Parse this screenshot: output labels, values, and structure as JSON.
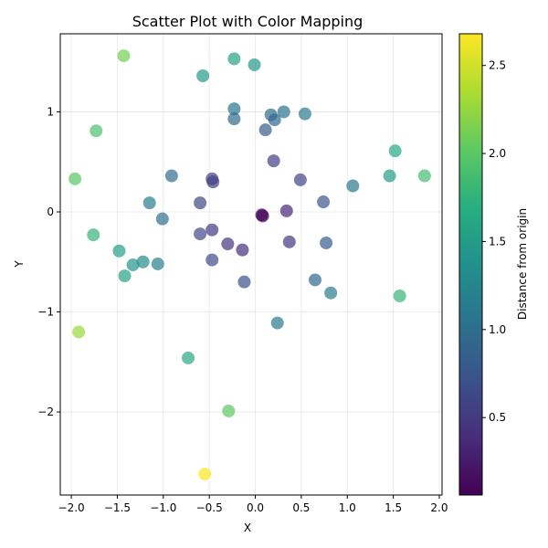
{
  "chart_data": {
    "type": "scatter",
    "title": "Scatter Plot with Color Mapping",
    "xlabel": "X",
    "ylabel": "Y",
    "xlim": [
      -2.12,
      2.03
    ],
    "ylim": [
      -2.83,
      1.78
    ],
    "xticks": [
      -2.0,
      -1.5,
      -1.0,
      -0.5,
      0.0,
      0.5,
      1.0,
      1.5,
      2.0
    ],
    "xtick_labels": [
      "−2.0",
      "−1.5",
      "−1.0",
      "−0.5",
      "0.0",
      "0.5",
      "1.0",
      "1.5",
      "2.0"
    ],
    "yticks": [
      -2,
      -1,
      0,
      1
    ],
    "ytick_labels": [
      "−2",
      "−1",
      "0",
      "1"
    ],
    "grid": true,
    "colormap": "viridis",
    "colorbar": {
      "label": "Distance from origin",
      "min": 0.06,
      "max": 2.68,
      "ticks": [
        0.5,
        1.0,
        1.5,
        2.0,
        2.5
      ],
      "tick_labels": [
        "0.5",
        "1.0",
        "1.5",
        "2.0",
        "2.5"
      ]
    },
    "points": [
      {
        "x": -1.43,
        "y": 1.56
      },
      {
        "x": -0.57,
        "y": 1.36
      },
      {
        "x": -0.23,
        "y": 1.53
      },
      {
        "x": -0.01,
        "y": 1.47
      },
      {
        "x": -1.73,
        "y": 0.81
      },
      {
        "x": -0.23,
        "y": 1.03
      },
      {
        "x": -0.23,
        "y": 0.93
      },
      {
        "x": 0.17,
        "y": 0.97
      },
      {
        "x": 0.21,
        "y": 0.92
      },
      {
        "x": 0.31,
        "y": 1.0
      },
      {
        "x": 0.54,
        "y": 0.98
      },
      {
        "x": 0.11,
        "y": 0.82
      },
      {
        "x": -1.96,
        "y": 0.33
      },
      {
        "x": -0.91,
        "y": 0.36
      },
      {
        "x": -0.47,
        "y": 0.33
      },
      {
        "x": -0.46,
        "y": 0.3
      },
      {
        "x": 0.2,
        "y": 0.51
      },
      {
        "x": 0.49,
        "y": 0.32
      },
      {
        "x": 1.06,
        "y": 0.26
      },
      {
        "x": 1.52,
        "y": 0.61
      },
      {
        "x": 1.46,
        "y": 0.36
      },
      {
        "x": 1.84,
        "y": 0.36
      },
      {
        "x": -1.15,
        "y": 0.09
      },
      {
        "x": -0.6,
        "y": 0.09
      },
      {
        "x": 0.74,
        "y": 0.1
      },
      {
        "x": -1.01,
        "y": -0.07
      },
      {
        "x": 0.07,
        "y": -0.03
      },
      {
        "x": 0.08,
        "y": -0.04
      },
      {
        "x": 0.34,
        "y": 0.01
      },
      {
        "x": -1.76,
        "y": -0.23
      },
      {
        "x": -0.6,
        "y": -0.22
      },
      {
        "x": -0.47,
        "y": -0.18
      },
      {
        "x": -0.3,
        "y": -0.32
      },
      {
        "x": -0.14,
        "y": -0.38
      },
      {
        "x": 0.37,
        "y": -0.3
      },
      {
        "x": 0.77,
        "y": -0.31
      },
      {
        "x": -1.48,
        "y": -0.39
      },
      {
        "x": -1.33,
        "y": -0.53
      },
      {
        "x": -1.22,
        "y": -0.5
      },
      {
        "x": -1.06,
        "y": -0.52
      },
      {
        "x": -0.47,
        "y": -0.48
      },
      {
        "x": -1.42,
        "y": -0.64
      },
      {
        "x": -0.12,
        "y": -0.7
      },
      {
        "x": 0.65,
        "y": -0.68
      },
      {
        "x": 0.82,
        "y": -0.81
      },
      {
        "x": 1.57,
        "y": -0.84
      },
      {
        "x": 0.24,
        "y": -1.11
      },
      {
        "x": -1.92,
        "y": -1.2
      },
      {
        "x": -0.73,
        "y": -1.46
      },
      {
        "x": -0.29,
        "y": -1.99
      },
      {
        "x": -0.55,
        "y": -2.62
      }
    ]
  }
}
